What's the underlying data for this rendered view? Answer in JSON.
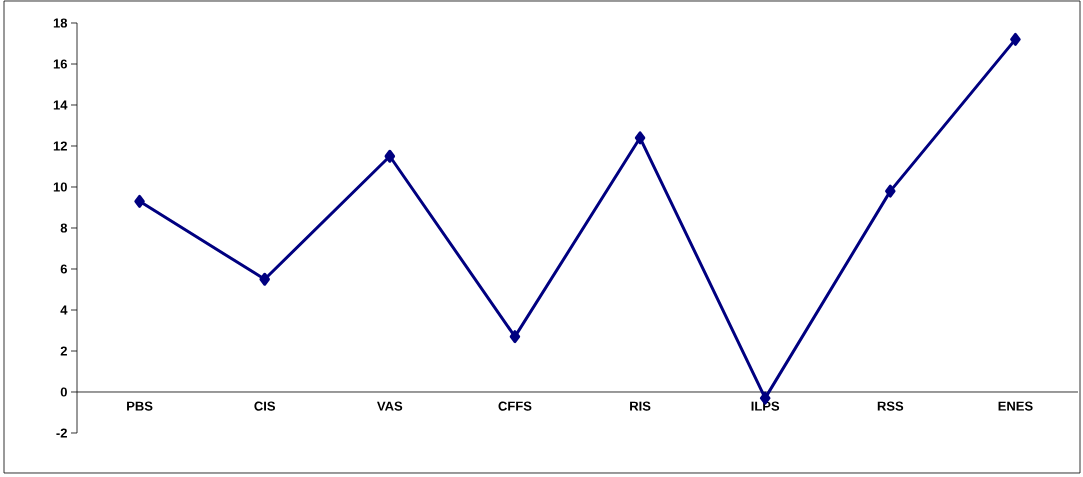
{
  "chart_data": {
    "type": "line",
    "categories": [
      "PBS",
      "CIS",
      "VAS",
      "CFFS",
      "RIS",
      "ILPS",
      "RSS",
      "ENES"
    ],
    "series": [
      {
        "color": "#000080",
        "values": [
          9.3,
          5.5,
          11.5,
          2.7,
          12.4,
          -0.3,
          9.8,
          17.2
        ]
      }
    ],
    "ylim": [
      -2,
      18
    ],
    "yticks": [
      -2,
      0,
      2,
      4,
      6,
      8,
      10,
      12,
      14,
      16,
      18
    ],
    "marker": "diamond",
    "line_style": "solid",
    "grid": false
  }
}
